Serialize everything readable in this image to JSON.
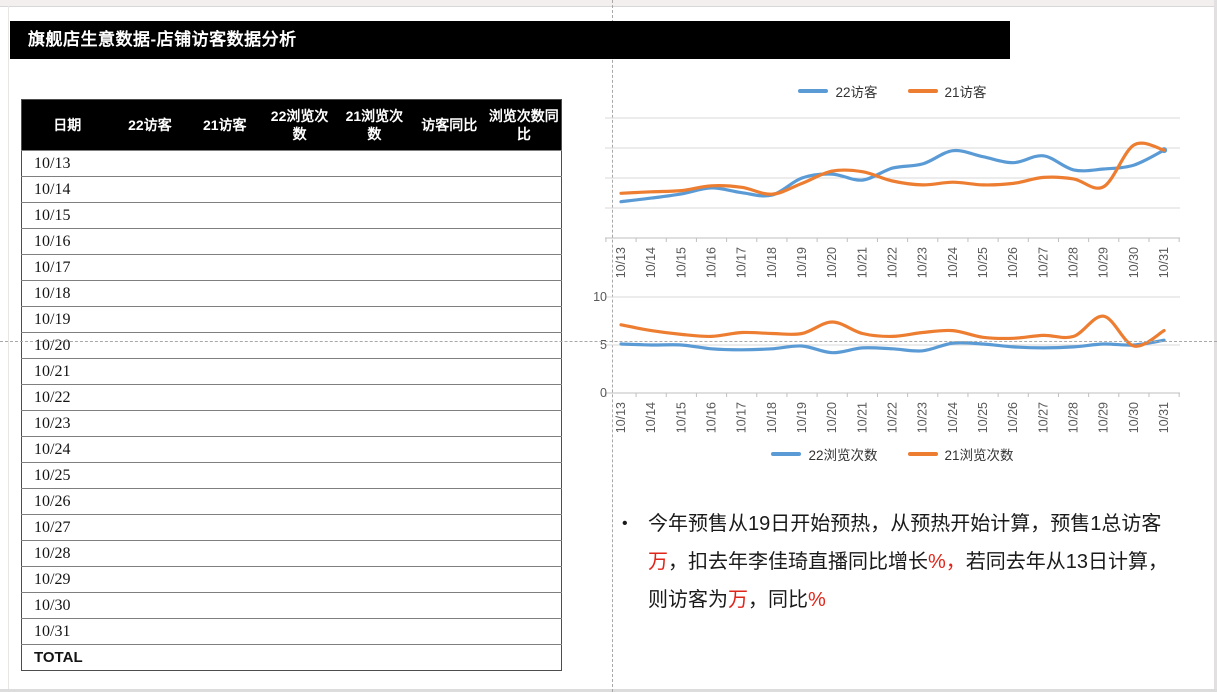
{
  "page": {
    "title": "旗舰店生意数据-店铺访客数据分析"
  },
  "table": {
    "headers": [
      "日期",
      "22访客",
      "21访客",
      "22浏览次数",
      "21浏览次数",
      "访客同比",
      "浏览次数同比"
    ],
    "dates": [
      "10/13",
      "10/14",
      "10/15",
      "10/16",
      "10/17",
      "10/18",
      "10/19",
      "10/20",
      "10/21",
      "10/22",
      "10/23",
      "10/24",
      "10/25",
      "10/26",
      "10/27",
      "10/28",
      "10/29",
      "10/30",
      "10/31"
    ],
    "total_label": "TOTAL"
  },
  "chart_data": [
    {
      "type": "line",
      "categories": [
        "10/13",
        "10/14",
        "10/15",
        "10/16",
        "10/17",
        "10/18",
        "10/19",
        "10/20",
        "10/21",
        "10/22",
        "10/23",
        "10/24",
        "10/25",
        "10/26",
        "10/27",
        "10/28",
        "10/29",
        "10/30",
        "10/31"
      ],
      "series": [
        {
          "name": "22访客",
          "color": "#5B9BD5",
          "values": [
            1.21,
            1.33,
            1.47,
            1.67,
            1.51,
            1.43,
            2.0,
            2.13,
            1.93,
            2.33,
            2.47,
            2.91,
            2.71,
            2.51,
            2.74,
            2.27,
            2.3,
            2.43,
            2.93
          ]
        },
        {
          "name": "21访客",
          "color": "#ED7D31",
          "values": [
            1.49,
            1.54,
            1.58,
            1.74,
            1.69,
            1.46,
            1.82,
            2.23,
            2.21,
            1.9,
            1.77,
            1.86,
            1.77,
            1.82,
            2.02,
            1.97,
            1.71,
            3.1,
            2.93
          ]
        }
      ],
      "ylim": [
        0,
        4
      ],
      "y_ticks": [],
      "grid": true,
      "legend_position": "top"
    },
    {
      "type": "line",
      "categories": [
        "10/13",
        "10/14",
        "10/15",
        "10/16",
        "10/17",
        "10/18",
        "10/19",
        "10/20",
        "10/21",
        "10/22",
        "10/23",
        "10/24",
        "10/25",
        "10/26",
        "10/27",
        "10/28",
        "10/29",
        "10/30",
        "10/31"
      ],
      "series": [
        {
          "name": "22浏览次数",
          "color": "#5B9BD5",
          "values": [
            5.1,
            5.0,
            5.0,
            4.6,
            4.5,
            4.6,
            4.9,
            4.2,
            4.7,
            4.6,
            4.4,
            5.2,
            5.1,
            4.8,
            4.7,
            4.8,
            5.1,
            5.0,
            5.5
          ]
        },
        {
          "name": "21浏览次数",
          "color": "#ED7D31",
          "values": [
            7.1,
            6.5,
            6.1,
            5.9,
            6.3,
            6.2,
            6.2,
            7.4,
            6.2,
            5.9,
            6.3,
            6.5,
            5.8,
            5.7,
            6.0,
            5.9,
            8.0,
            4.9,
            6.5
          ]
        }
      ],
      "ylim": [
        0,
        10
      ],
      "y_ticks": [
        {
          "value": 0,
          "label": "0"
        },
        {
          "value": 5,
          "label": "5"
        },
        {
          "value": 10,
          "label": "10"
        }
      ],
      "grid": true,
      "legend_position": "bottom"
    }
  ],
  "note": {
    "bullet": "•",
    "segments": [
      {
        "text": "今年预售从19日开始预热，从预热开始计算，预售1总访客",
        "red": false
      },
      {
        "text": "万",
        "red": true
      },
      {
        "text": "，扣去年李佳琦直播同比增长",
        "red": false
      },
      {
        "text": "%，",
        "red": true
      },
      {
        "text": "若同去年从13日计算，则访客为",
        "red": false
      },
      {
        "text": "万",
        "red": true
      },
      {
        "text": "，同比",
        "red": false
      },
      {
        "text": "%",
        "red": true
      }
    ]
  },
  "colors": {
    "line_blue": "#5B9BD5",
    "line_orange": "#ED7D31",
    "red_text": "#E02419",
    "title_bg": "#000000",
    "title_fg": "#FFFFFF"
  }
}
